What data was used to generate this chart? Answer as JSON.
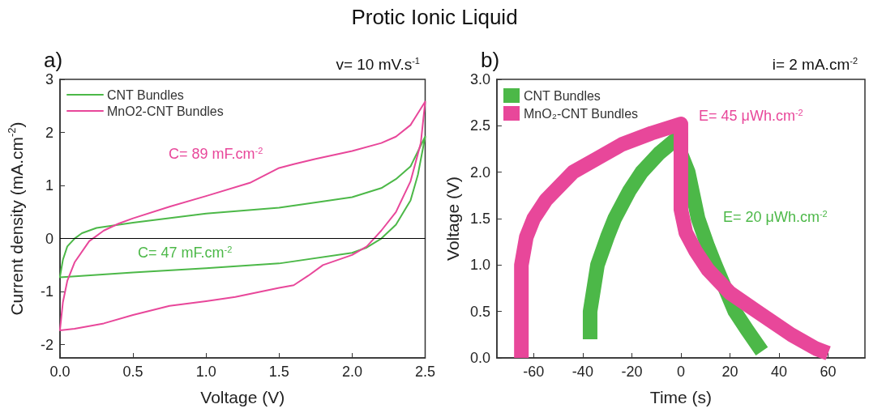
{
  "chart_data": [
    {
      "type": "line",
      "title": "a)",
      "subtitle": "v= 10 mV.s$^{-1}$",
      "xlabel": "Voltage (V)",
      "ylabel": "Current density (mA.cm$^{-2}$)",
      "annotations": [
        "Protic Ionic Liquid",
        "C= 47 mF.cm$^{-2}$",
        "C= 89 mF.cm$^{-2}$"
      ],
      "xlim": [
        0,
        2.5
      ],
      "xticks": [
        {
          "value": 0,
          "label": "0.0"
        },
        {
          "value": 0.5,
          "label": "0.5"
        },
        {
          "value": 1,
          "label": "1.0"
        },
        {
          "value": 1.5,
          "label": "1.5"
        },
        {
          "value": 2,
          "label": "2.0"
        },
        {
          "value": 2.5,
          "label": "2.5"
        }
      ],
      "ylim": [
        -2.25,
        3
      ],
      "yticks": [
        -2,
        -1,
        0,
        1,
        2,
        3
      ],
      "grid": false,
      "legend": "top left",
      "line_style": "solid",
      "ref_lines": [
        {
          "axis": "y",
          "value": 0,
          "color": "#000000"
        }
      ],
      "series": [
        {
          "name": "CNT Bundles",
          "color": "#4cb848",
          "x": [
            0,
            0.02,
            0.05,
            0.1,
            0.15,
            0.25,
            0.5,
            1.0,
            1.5,
            1.8,
            2.0,
            2.2,
            2.3,
            2.4,
            2.5,
            2.45,
            2.4,
            2.3,
            2.2,
            2.1,
            2.0,
            1.5,
            1.0,
            0.5,
            0
          ],
          "values": [
            -0.72,
            -0.4,
            -0.15,
            0.0,
            0.1,
            0.2,
            0.3,
            0.47,
            0.58,
            0.7,
            0.78,
            0.95,
            1.12,
            1.36,
            1.92,
            1.2,
            0.72,
            0.26,
            0.0,
            -0.17,
            -0.27,
            -0.47,
            -0.56,
            -0.64,
            -0.73
          ]
        },
        {
          "name": "MnO2-CNT Bundles",
          "color": "#e8479a",
          "x": [
            0,
            0.02,
            0.05,
            0.1,
            0.2,
            0.3,
            0.4,
            0.5,
            0.75,
            1.0,
            1.3,
            1.5,
            1.6,
            1.75,
            2.0,
            2.2,
            2.3,
            2.4,
            2.5,
            2.47,
            2.4,
            2.3,
            2.2,
            2.15,
            2.1,
            2.0,
            1.8,
            1.7,
            1.6,
            1.5,
            1.2,
            1.0,
            0.75,
            0.5,
            0.3,
            0.1,
            0
          ],
          "values": [
            -1.72,
            -1.2,
            -0.8,
            -0.45,
            -0.05,
            0.15,
            0.28,
            0.38,
            0.6,
            0.8,
            1.05,
            1.33,
            1.4,
            1.5,
            1.65,
            1.8,
            1.92,
            2.14,
            2.58,
            1.8,
            1.08,
            0.5,
            0.15,
            0.0,
            -0.15,
            -0.31,
            -0.5,
            -0.7,
            -0.88,
            -0.93,
            -1.1,
            -1.18,
            -1.27,
            -1.44,
            -1.6,
            -1.7,
            -1.73
          ]
        }
      ]
    },
    {
      "type": "line",
      "title": "b)",
      "subtitle": "i= 2 mA.cm$^{-2}$",
      "xlabel": "Time (s)",
      "ylabel": "Voltage (V)",
      "annotations": [
        "E= 20 μWh.cm$^{-2}$",
        "E= 45 μWh.cm$^{-2}$"
      ],
      "xlim": [
        -75,
        75
      ],
      "xticks": [
        -60,
        -40,
        -20,
        0,
        20,
        40,
        60
      ],
      "ylim": [
        0,
        3
      ],
      "yticks": [
        {
          "value": 0,
          "label": "0.0"
        },
        {
          "value": 0.5,
          "label": "0.5"
        },
        {
          "value": 1,
          "label": "1.0"
        },
        {
          "value": 1.5,
          "label": "1.5"
        },
        {
          "value": 2,
          "label": "2.0"
        },
        {
          "value": 2.5,
          "label": "2.5"
        },
        {
          "value": 3,
          "label": "3.0"
        }
      ],
      "grid": false,
      "legend": "top left",
      "line_style": "solid",
      "series": [
        {
          "name": "CNT Bundles",
          "color": "#4cb848",
          "x": [
            -37,
            -37,
            -34,
            -30,
            -27,
            -21,
            -16,
            -9,
            0,
            0,
            0,
            3,
            7,
            11,
            14,
            18,
            22,
            27,
            33
          ],
          "values": [
            0.2,
            0.5,
            1.0,
            1.3,
            1.5,
            1.8,
            2.0,
            2.2,
            2.4,
            2.28,
            2.2,
            2.0,
            1.5,
            1.2,
            1.0,
            0.75,
            0.5,
            0.3,
            0.07
          ]
        },
        {
          "name": "MnO₂-CNT Bundles",
          "color": "#e8479a",
          "x": [
            -65,
            -65,
            -65,
            -63,
            -60,
            -55,
            -44,
            -34,
            -24,
            -12,
            0,
            0,
            0,
            2,
            6,
            11,
            20,
            31,
            45,
            55,
            60
          ],
          "values": [
            0.0,
            0.3,
            1.0,
            1.3,
            1.5,
            1.7,
            2.0,
            2.15,
            2.3,
            2.42,
            2.52,
            2.2,
            1.6,
            1.35,
            1.15,
            0.95,
            0.7,
            0.5,
            0.25,
            0.1,
            0.05
          ]
        }
      ]
    }
  ]
}
